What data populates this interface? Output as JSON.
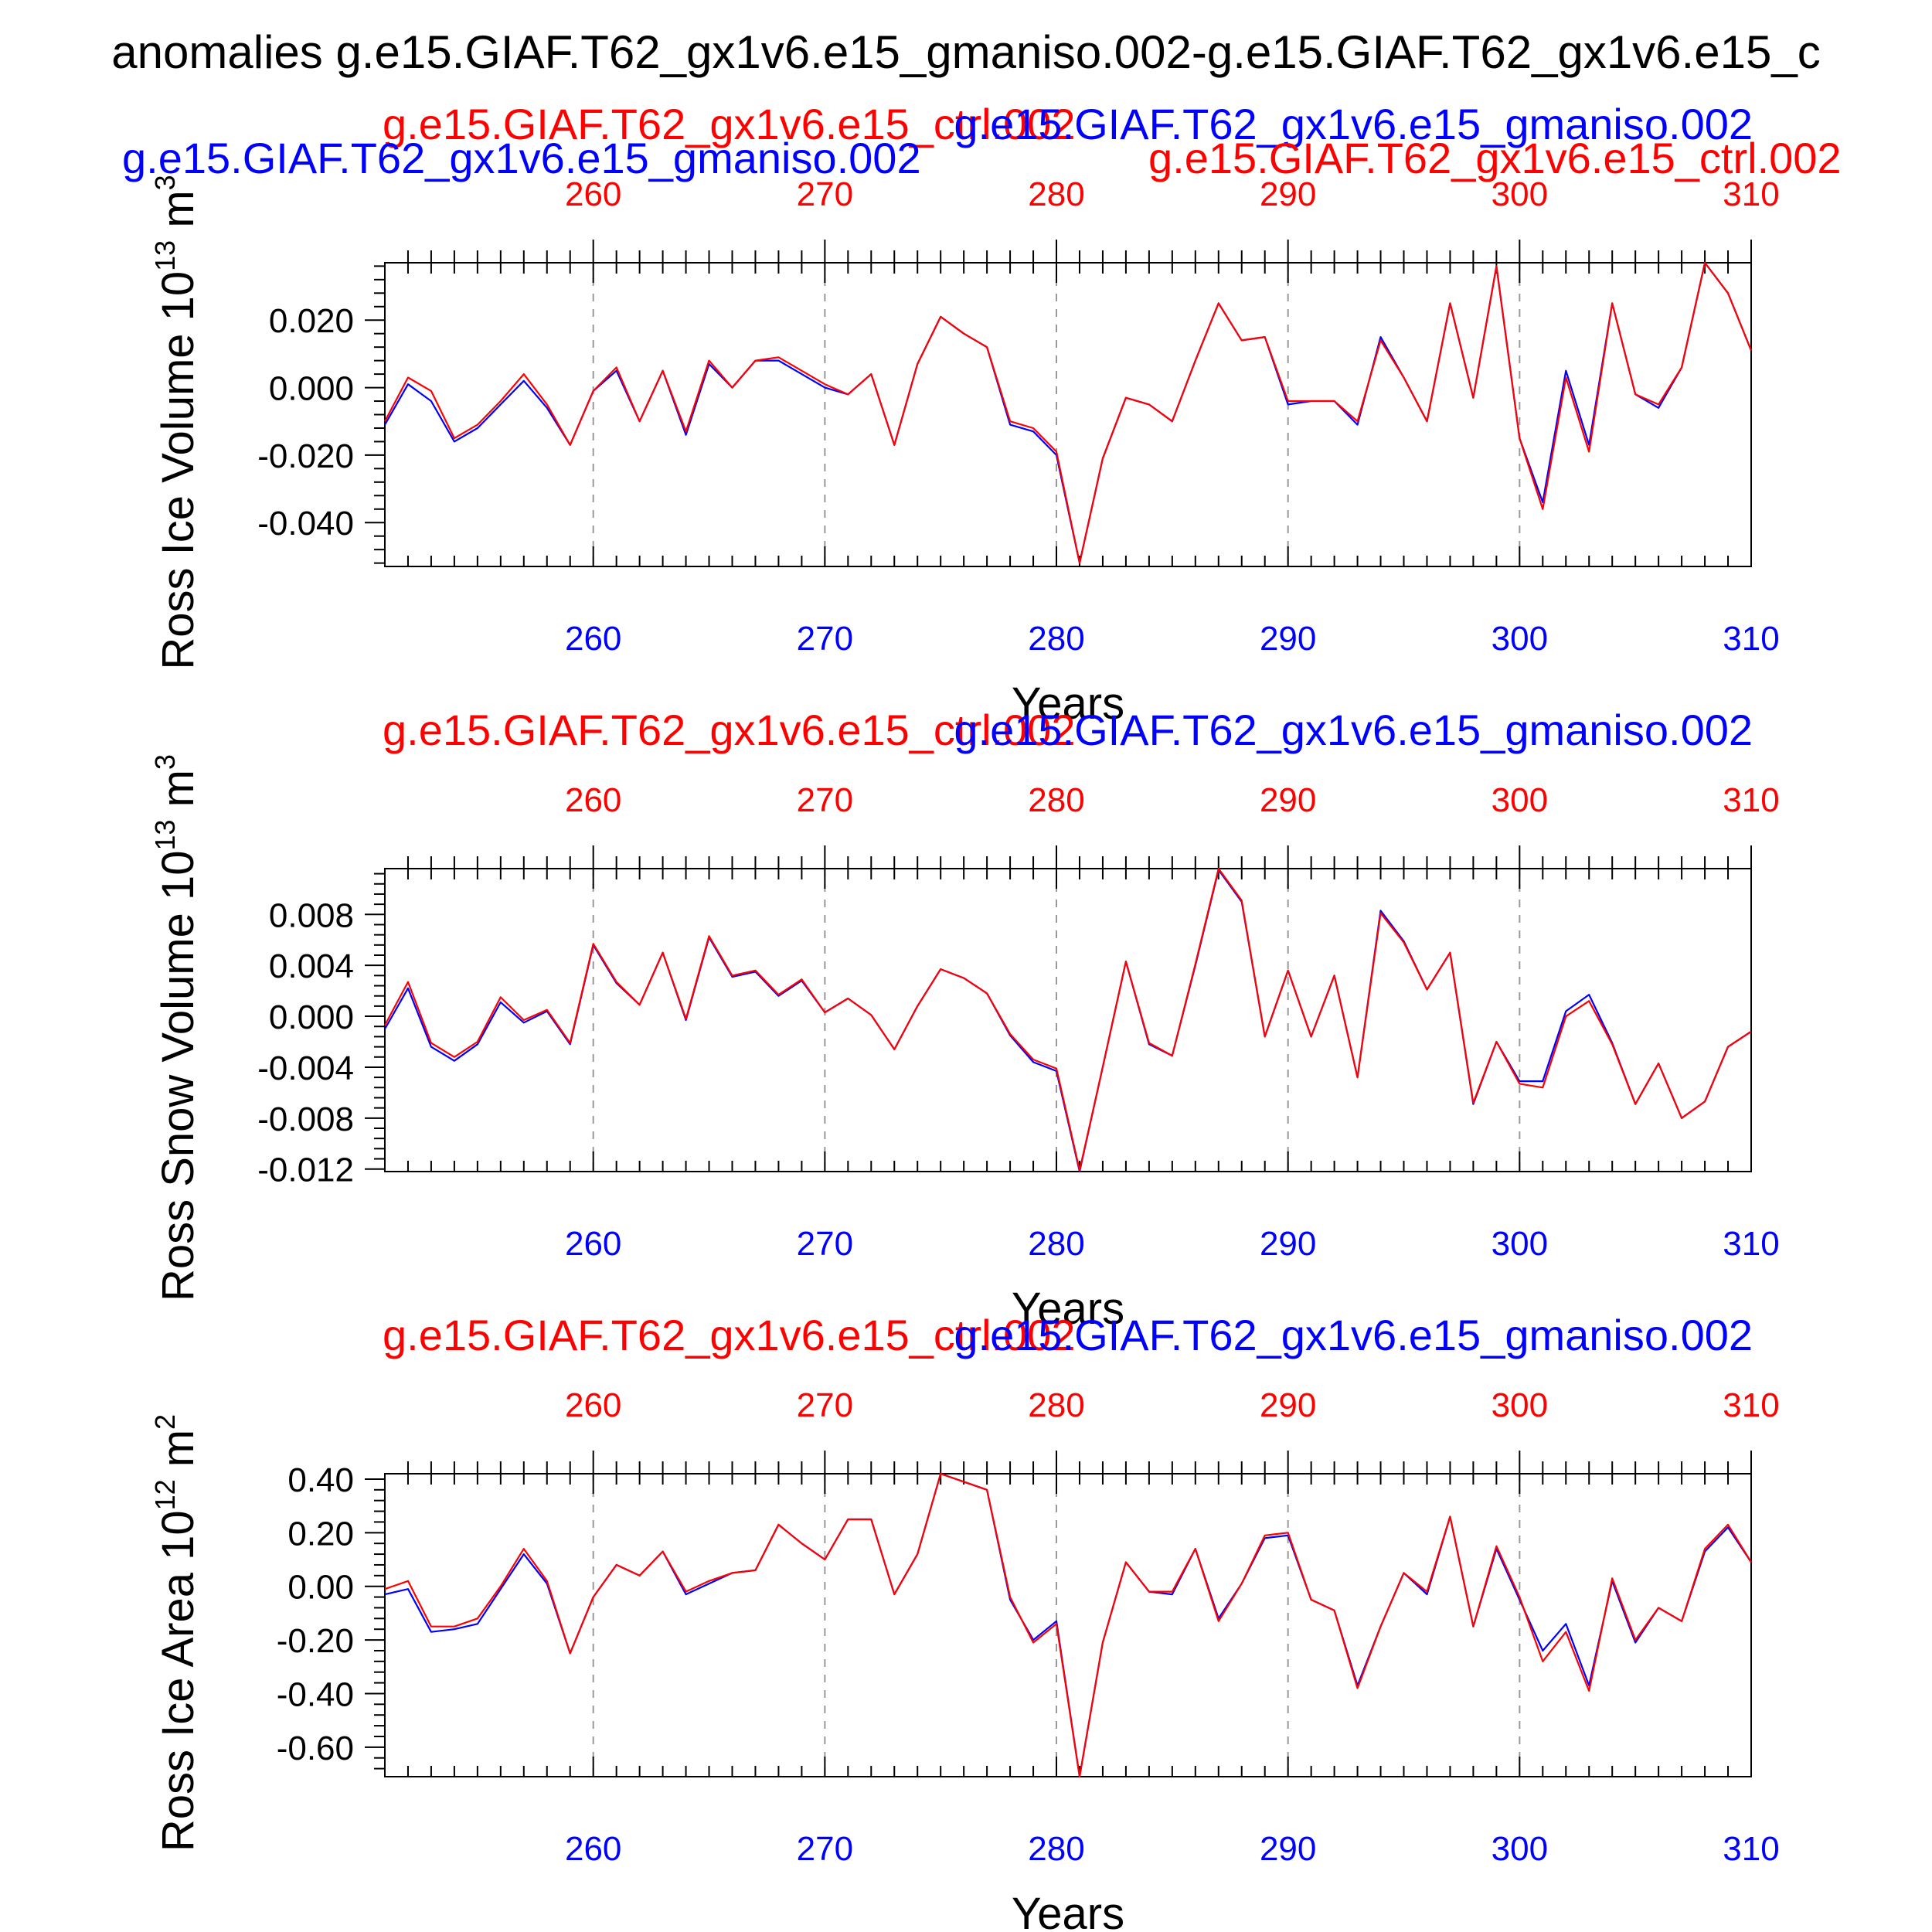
{
  "main_title": "anomalies g.e15.GIAF.T62_gx1v6.e15_gmaniso.002-g.e15.GIAF.T62_gx1v6.e15_c",
  "colors": {
    "blue": "#0000ff",
    "red": "#ff0000",
    "axis": "#000000",
    "grid": "#999999"
  },
  "chart_data": [
    {
      "type": "line",
      "title_left": "g.e15.GIAF.T62_gx1v6.e15_ctrl.002",
      "title_right": "g.e15.GIAF.T62_gx1v6.e15_gmaniso.002",
      "title_left_extra": "g.e15.GIAF.T62_gx1v6.e15_gmaniso.002",
      "title_right_extra": "g.e15.GIAF.T62_gx1v6.e15_ctrl.002",
      "ylabel": "Ross Ice Volume 10",
      "ylabel_exp": "13",
      "ylabel_unit": " m",
      "ylabel_unit_exp": "3",
      "xlabel": "Years",
      "xlim": [
        251,
        310
      ],
      "ylim": [
        -0.053,
        0.037
      ],
      "yticks": [
        -0.04,
        -0.02,
        0.0,
        0.02
      ],
      "ytick_labels": [
        "-0.040",
        "-0.020",
        "0.000",
        "0.020"
      ],
      "xticks": [
        260,
        270,
        280,
        290,
        300,
        310
      ],
      "xtick_labels": [
        "260",
        "270",
        "280",
        "290",
        "300",
        "310"
      ],
      "grid": "vertical-dashed",
      "x": [
        251,
        252,
        253,
        254,
        255,
        256,
        257,
        258,
        259,
        260,
        261,
        262,
        263,
        264,
        265,
        266,
        267,
        268,
        269,
        270,
        271,
        272,
        273,
        274,
        275,
        276,
        277,
        278,
        279,
        280,
        281,
        282,
        283,
        284,
        285,
        286,
        287,
        288,
        289,
        290,
        291,
        292,
        293,
        294,
        295,
        296,
        297,
        298,
        299,
        300,
        301,
        302,
        303,
        304,
        305,
        306,
        307,
        308,
        309,
        310
      ],
      "series": [
        {
          "name": "g.e15.GIAF.T62_gx1v6.e15_gmaniso.002",
          "color": "blue",
          "values": [
            -0.011,
            0.001,
            -0.004,
            -0.016,
            -0.012,
            -0.005,
            0.002,
            -0.006,
            -0.017,
            -0.001,
            0.005,
            -0.01,
            0.005,
            -0.014,
            0.007,
            0.0,
            0.008,
            0.008,
            0.004,
            0.0,
            -0.002,
            0.004,
            -0.017,
            0.007,
            0.021,
            0.016,
            0.012,
            -0.011,
            -0.013,
            -0.02,
            -0.052,
            -0.021,
            -0.003,
            -0.005,
            -0.01,
            0.008,
            0.025,
            0.014,
            0.015,
            -0.005,
            -0.004,
            -0.004,
            -0.011,
            0.015,
            0.003,
            -0.01,
            0.025,
            -0.003,
            0.036,
            -0.015,
            -0.034,
            0.005,
            -0.017,
            0.025,
            -0.002,
            -0.006,
            0.006,
            0.037,
            0.028,
            0.011
          ]
        },
        {
          "name": "g.e15.GIAF.T62_gx1v6.e15_ctrl.002",
          "color": "red",
          "values": [
            -0.01,
            0.003,
            -0.001,
            -0.015,
            -0.011,
            -0.004,
            0.004,
            -0.005,
            -0.017,
            -0.001,
            0.006,
            -0.01,
            0.005,
            -0.013,
            0.008,
            0.0,
            0.008,
            0.009,
            0.005,
            0.001,
            -0.002,
            0.004,
            -0.017,
            0.007,
            0.021,
            0.016,
            0.012,
            -0.01,
            -0.012,
            -0.019,
            -0.052,
            -0.021,
            -0.003,
            -0.005,
            -0.01,
            0.008,
            0.025,
            0.014,
            0.015,
            -0.004,
            -0.004,
            -0.004,
            -0.01,
            0.014,
            0.003,
            -0.01,
            0.025,
            -0.003,
            0.036,
            -0.015,
            -0.036,
            0.003,
            -0.019,
            0.025,
            -0.002,
            -0.005,
            0.006,
            0.037,
            0.028,
            0.011
          ]
        }
      ]
    },
    {
      "type": "line",
      "title_left": "g.e15.GIAF.T62_gx1v6.e15_ctrl.002",
      "title_right": "g.e15.GIAF.T62_gx1v6.e15_gmaniso.002",
      "ylabel": "Ross Snow Volume 10",
      "ylabel_exp": "13",
      "ylabel_unit": " m",
      "ylabel_unit_exp": "3",
      "xlabel": "Years",
      "xlim": [
        251,
        310
      ],
      "ylim": [
        -0.0122,
        0.0116
      ],
      "yticks": [
        -0.012,
        -0.008,
        -0.004,
        0.0,
        0.004,
        0.008
      ],
      "ytick_labels": [
        "-0.012",
        "-0.008",
        "-0.004",
        "0.000",
        "0.004",
        "0.008"
      ],
      "xticks": [
        260,
        270,
        280,
        290,
        300,
        310
      ],
      "xtick_labels": [
        "260",
        "270",
        "280",
        "290",
        "300",
        "310"
      ],
      "grid": "vertical-dashed",
      "x": [
        251,
        252,
        253,
        254,
        255,
        256,
        257,
        258,
        259,
        260,
        261,
        262,
        263,
        264,
        265,
        266,
        267,
        268,
        269,
        270,
        271,
        272,
        273,
        274,
        275,
        276,
        277,
        278,
        279,
        280,
        281,
        282,
        283,
        284,
        285,
        286,
        287,
        288,
        289,
        290,
        291,
        292,
        293,
        294,
        295,
        296,
        297,
        298,
        299,
        300,
        301,
        302,
        303,
        304,
        305,
        306,
        307,
        308,
        309,
        310
      ],
      "series": [
        {
          "name": "g.e15.GIAF.T62_gx1v6.e15_gmaniso.002",
          "color": "blue",
          "values": [
            -0.001,
            0.0022,
            -0.0024,
            -0.0035,
            -0.0022,
            0.0011,
            -0.0005,
            0.0004,
            -0.0022,
            0.0056,
            0.0026,
            0.0009,
            0.005,
            -0.0003,
            0.0062,
            0.0031,
            0.0035,
            0.0016,
            0.0028,
            0.0003,
            0.0014,
            0.0001,
            -0.0026,
            0.0008,
            0.0037,
            0.003,
            0.0018,
            -0.0015,
            -0.0036,
            -0.0043,
            -0.0122,
            -0.004,
            0.0043,
            -0.0022,
            -0.0031,
            0.004,
            0.0115,
            0.009,
            -0.0016,
            0.0036,
            -0.0016,
            0.0032,
            -0.0048,
            0.0083,
            0.0059,
            0.0021,
            0.005,
            -0.0069,
            -0.002,
            -0.0051,
            -0.0051,
            0.0004,
            0.0017,
            -0.0021,
            -0.0069,
            -0.0037,
            -0.008,
            -0.0067,
            -0.0024,
            -0.0012
          ]
        },
        {
          "name": "g.e15.GIAF.T62_gx1v6.e15_ctrl.002",
          "color": "red",
          "values": [
            -0.0007,
            0.0027,
            -0.0021,
            -0.0032,
            -0.002,
            0.0015,
            -0.0003,
            0.0005,
            -0.0021,
            0.0057,
            0.0027,
            0.0009,
            0.005,
            -0.0002,
            0.0063,
            0.0032,
            0.0036,
            0.0017,
            0.0029,
            0.0003,
            0.0014,
            0.0001,
            -0.0026,
            0.0008,
            0.0037,
            0.003,
            0.0018,
            -0.0014,
            -0.0034,
            -0.0041,
            -0.0121,
            -0.004,
            0.0043,
            -0.0021,
            -0.0031,
            0.0041,
            0.0116,
            0.0091,
            -0.0016,
            0.0036,
            -0.0016,
            0.0032,
            -0.0048,
            0.0081,
            0.0058,
            0.0021,
            0.005,
            -0.0068,
            -0.002,
            -0.0053,
            -0.0056,
            0.0,
            0.0012,
            -0.0022,
            -0.0069,
            -0.0037,
            -0.008,
            -0.0067,
            -0.0024,
            -0.0012
          ]
        }
      ]
    },
    {
      "type": "line",
      "title_left": "g.e15.GIAF.T62_gx1v6.e15_ctrl.002",
      "title_right": "g.e15.GIAF.T62_gx1v6.e15_gmaniso.002",
      "ylabel": "Ross Ice Area 10",
      "ylabel_exp": "12",
      "ylabel_unit": " m",
      "ylabel_unit_exp": "2",
      "xlabel": "Years",
      "xlim": [
        251,
        310
      ],
      "ylim": [
        -0.71,
        0.42
      ],
      "yticks": [
        -0.6,
        -0.4,
        -0.2,
        0.0,
        0.2,
        0.4
      ],
      "ytick_labels": [
        "-0.60",
        "-0.40",
        "-0.20",
        "0.00",
        "0.20",
        "0.40"
      ],
      "xticks": [
        260,
        270,
        280,
        290,
        300,
        310
      ],
      "xtick_labels": [
        "260",
        "270",
        "280",
        "290",
        "300",
        "310"
      ],
      "grid": "vertical-dashed",
      "x": [
        251,
        252,
        253,
        254,
        255,
        256,
        257,
        258,
        259,
        260,
        261,
        262,
        263,
        264,
        265,
        266,
        267,
        268,
        269,
        270,
        271,
        272,
        273,
        274,
        275,
        276,
        277,
        278,
        279,
        280,
        281,
        282,
        283,
        284,
        285,
        286,
        287,
        288,
        289,
        290,
        291,
        292,
        293,
        294,
        295,
        296,
        297,
        298,
        299,
        300,
        301,
        302,
        303,
        304,
        305,
        306,
        307,
        308,
        309,
        310
      ],
      "series": [
        {
          "name": "g.e15.GIAF.T62_gx1v6.e15_gmaniso.002",
          "color": "blue",
          "values": [
            -0.03,
            -0.01,
            -0.17,
            -0.16,
            -0.14,
            -0.01,
            0.12,
            0.01,
            -0.25,
            -0.04,
            0.08,
            0.04,
            0.13,
            -0.03,
            0.01,
            0.05,
            0.06,
            0.23,
            0.16,
            0.1,
            0.25,
            0.25,
            -0.03,
            0.12,
            0.42,
            0.39,
            0.36,
            -0.05,
            -0.2,
            -0.13,
            -0.71,
            -0.21,
            0.09,
            -0.02,
            -0.03,
            0.14,
            -0.12,
            0.01,
            0.18,
            0.19,
            -0.05,
            -0.09,
            -0.37,
            -0.15,
            0.05,
            -0.03,
            0.26,
            -0.15,
            0.14,
            -0.05,
            -0.24,
            -0.14,
            -0.37,
            0.02,
            -0.21,
            -0.08,
            -0.13,
            0.13,
            0.22,
            0.09
          ]
        },
        {
          "name": "g.e15.GIAF.T62_gx1v6.e15_ctrl.002",
          "color": "red",
          "values": [
            -0.01,
            0.02,
            -0.15,
            -0.15,
            -0.12,
            0.0,
            0.14,
            0.02,
            -0.25,
            -0.04,
            0.08,
            0.04,
            0.13,
            -0.02,
            0.02,
            0.05,
            0.06,
            0.23,
            0.16,
            0.1,
            0.25,
            0.25,
            -0.03,
            0.12,
            0.42,
            0.39,
            0.36,
            -0.04,
            -0.21,
            -0.14,
            -0.71,
            -0.21,
            0.09,
            -0.02,
            -0.02,
            0.14,
            -0.13,
            0.01,
            0.19,
            0.2,
            -0.05,
            -0.09,
            -0.38,
            -0.15,
            0.05,
            -0.02,
            0.26,
            -0.15,
            0.15,
            -0.04,
            -0.28,
            -0.17,
            -0.39,
            0.03,
            -0.2,
            -0.08,
            -0.13,
            0.14,
            0.23,
            0.09
          ]
        }
      ]
    }
  ]
}
